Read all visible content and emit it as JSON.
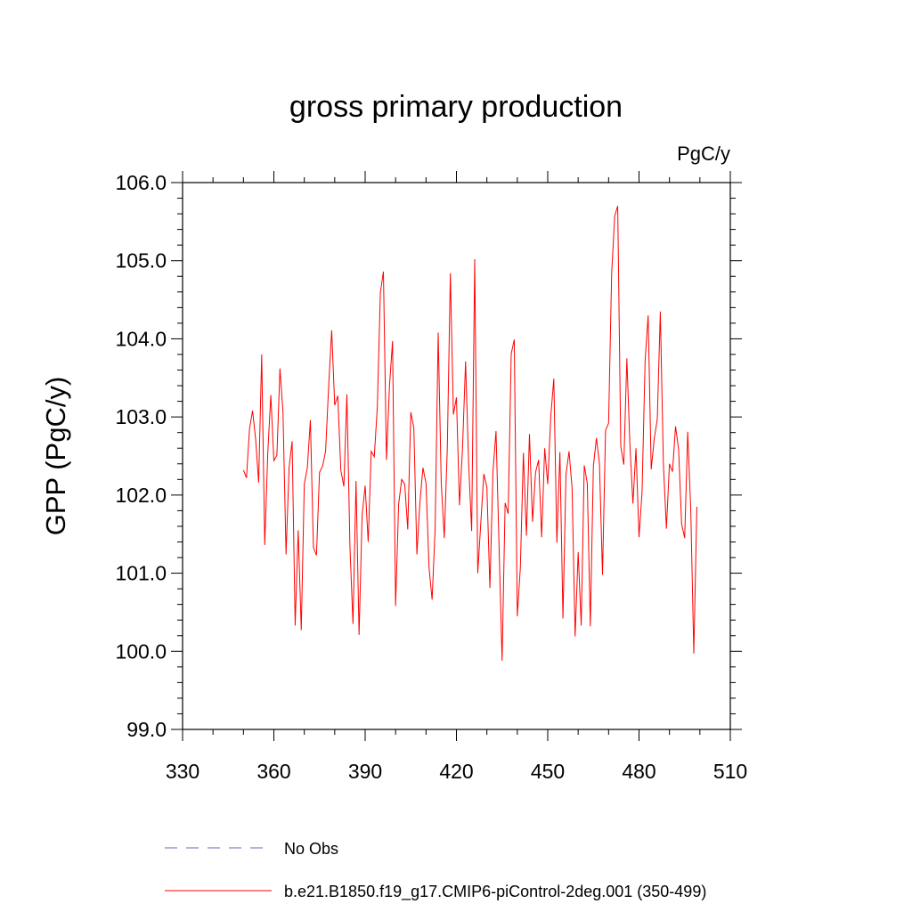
{
  "chart_data": {
    "type": "line",
    "title": "gross primary production",
    "units_label": "PgC/y",
    "xlabel": "",
    "ylabel": "GPP  (PgC/y)",
    "xlim": [
      330,
      510
    ],
    "ylim": [
      99.0,
      106.0
    ],
    "x_ticks": [
      330,
      360,
      390,
      420,
      450,
      480,
      510
    ],
    "y_ticks": [
      "99.0",
      "100.0",
      "101.0",
      "102.0",
      "103.0",
      "104.0",
      "105.0",
      "106.0"
    ],
    "grid": false,
    "legend_position": "bottom",
    "series": [
      {
        "name": "No Obs",
        "color": "#6f60b4",
        "dash": "dashed",
        "x": [],
        "y": []
      },
      {
        "name": "b.e21.B1850.f19_g17.CMIP6-piControl-2deg.001 (350-499)",
        "color": "#ff0000",
        "dash": "solid",
        "x": [
          350,
          351,
          352,
          353,
          354,
          355,
          356,
          357,
          358,
          359,
          360,
          361,
          362,
          363,
          364,
          365,
          366,
          367,
          368,
          369,
          370,
          371,
          372,
          373,
          374,
          375,
          376,
          377,
          378,
          379,
          380,
          381,
          382,
          383,
          384,
          385,
          386,
          387,
          388,
          389,
          390,
          391,
          392,
          393,
          394,
          395,
          396,
          397,
          398,
          399,
          400,
          401,
          402,
          403,
          404,
          405,
          406,
          407,
          408,
          409,
          410,
          411,
          412,
          413,
          414,
          415,
          416,
          417,
          418,
          419,
          420,
          421,
          422,
          423,
          424,
          425,
          426,
          427,
          428,
          429,
          430,
          431,
          432,
          433,
          434,
          435,
          436,
          437,
          438,
          439,
          440,
          441,
          442,
          443,
          444,
          445,
          446,
          447,
          448,
          449,
          450,
          451,
          452,
          453,
          454,
          455,
          456,
          457,
          458,
          459,
          460,
          461,
          462,
          463,
          464,
          465,
          466,
          467,
          468,
          469,
          470,
          471,
          472,
          473,
          474,
          475,
          476,
          477,
          478,
          479,
          480,
          481,
          482,
          483,
          484,
          485,
          486,
          487,
          488,
          489,
          490,
          491,
          492,
          493,
          494,
          495,
          496,
          497,
          498,
          499
        ],
        "y": [
          102.32,
          102.22,
          102.85,
          103.08,
          102.72,
          102.16,
          103.8,
          101.36,
          102.54,
          103.28,
          102.44,
          102.51,
          103.62,
          103.06,
          101.24,
          102.35,
          102.69,
          100.33,
          101.55,
          100.27,
          102.14,
          102.35,
          102.96,
          101.33,
          101.23,
          102.29,
          102.37,
          102.56,
          103.39,
          104.11,
          103.15,
          103.27,
          102.32,
          102.11,
          103.29,
          101.34,
          100.35,
          102.18,
          100.21,
          101.74,
          102.12,
          101.4,
          102.56,
          102.49,
          103.13,
          104.59,
          104.86,
          102.45,
          103.4,
          103.97,
          100.58,
          101.88,
          102.2,
          102.14,
          101.56,
          103.06,
          102.86,
          101.24,
          101.91,
          102.35,
          102.15,
          101.07,
          100.66,
          101.57,
          104.08,
          102.16,
          101.45,
          102.6,
          104.84,
          103.03,
          103.25,
          101.87,
          102.6,
          103.71,
          102.41,
          101.54,
          105.02,
          101.0,
          101.64,
          102.27,
          102.1,
          100.81,
          102.3,
          102.82,
          101.35,
          99.88,
          101.9,
          101.76,
          103.81,
          103.99,
          100.45,
          101.07,
          102.54,
          101.48,
          102.78,
          101.66,
          102.29,
          102.45,
          101.46,
          102.6,
          102.14,
          103.01,
          103.49,
          101.39,
          102.55,
          100.42,
          102.26,
          102.56,
          102.09,
          100.19,
          101.27,
          100.33,
          102.38,
          102.15,
          100.32,
          102.37,
          102.73,
          102.4,
          100.98,
          102.83,
          102.92,
          104.83,
          105.57,
          105.7,
          102.62,
          102.39,
          103.75,
          102.65,
          101.89,
          102.6,
          101.46,
          102.04,
          103.72,
          104.3,
          102.33,
          102.72,
          102.97,
          104.35,
          102.41,
          101.57,
          102.4,
          102.3,
          102.88,
          102.59,
          101.63,
          101.45,
          102.81,
          101.82,
          99.97,
          101.85
        ]
      }
    ]
  }
}
